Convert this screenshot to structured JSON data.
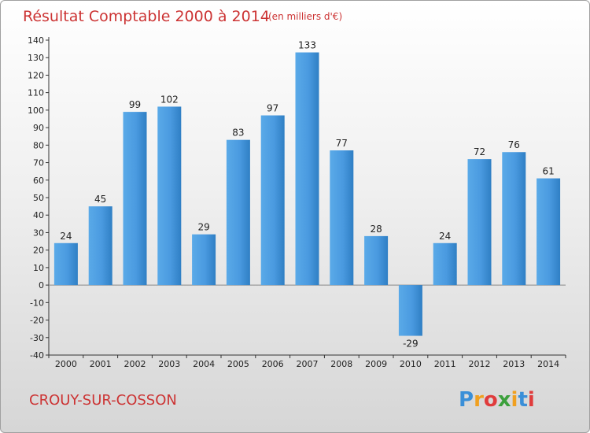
{
  "chart_data": {
    "type": "bar",
    "title": "Résultat Comptable 2000 à 2014",
    "unit_note": "(en milliers d'€)",
    "categories": [
      "2000",
      "2001",
      "2002",
      "2003",
      "2004",
      "2005",
      "2006",
      "2007",
      "2008",
      "2009",
      "2010",
      "2011",
      "2012",
      "2013",
      "2014"
    ],
    "values": [
      24,
      45,
      99,
      102,
      29,
      83,
      97,
      133,
      77,
      28,
      -29,
      24,
      72,
      76,
      61
    ],
    "ylim": [
      -40,
      140
    ],
    "ytick_step": 10,
    "xlabel": "",
    "ylabel": "",
    "grid": false
  },
  "commune_name": "CROUY-SUR-COSSON",
  "brand": {
    "letters": [
      "P",
      "r",
      "o",
      "x",
      "i",
      "t",
      "i"
    ],
    "colors": [
      "#3a8fd8",
      "#f0a020",
      "#e03c3c",
      "#3ca03c",
      "#f0a020",
      "#3a8fd8",
      "#e03c3c"
    ]
  },
  "colors": {
    "bar_light": "#5aaae8",
    "bar_dark": "#2f7fc4",
    "title": "#cc3333"
  }
}
